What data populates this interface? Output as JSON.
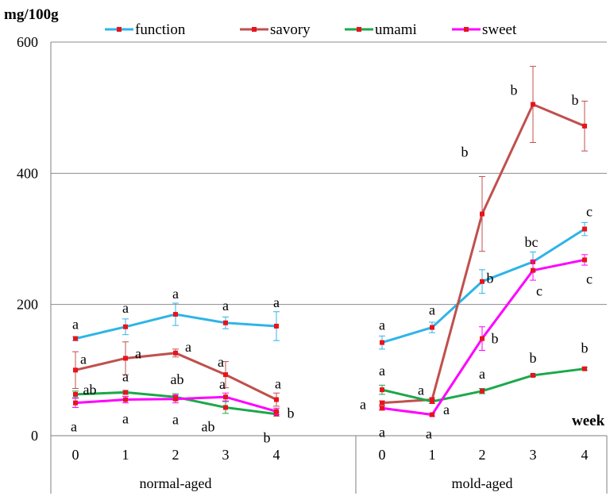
{
  "chart_data": {
    "type": "line",
    "ylabel": "mg/100g",
    "xlabel": "week",
    "ylim": [
      0,
      600
    ],
    "yticks": [
      0,
      200,
      400,
      600
    ],
    "grid": true,
    "legend_position": "top",
    "groups": [
      {
        "label": "normal-aged",
        "ticks": [
          "0",
          "1",
          "2",
          "3",
          "4"
        ]
      },
      {
        "label": "mold-aged",
        "ticks": [
          "0",
          "1",
          "2",
          "3",
          "4"
        ]
      }
    ],
    "series": [
      {
        "name": "function",
        "color": "#2EB4E8",
        "values": [
          [
            148,
            166,
            185,
            172,
            167
          ],
          [
            142,
            165,
            235,
            265,
            315
          ]
        ],
        "errors": [
          [
            3,
            12,
            17,
            9,
            22
          ],
          [
            10,
            8,
            18,
            15,
            10
          ]
        ],
        "letters": [
          [
            "a",
            "a",
            "a",
            "a",
            "a"
          ],
          [
            "a",
            "a",
            "b",
            "bc",
            "c"
          ]
        ]
      },
      {
        "name": "savory",
        "color": "#C0504D",
        "values": [
          [
            100,
            118,
            126,
            93,
            55
          ],
          [
            50,
            55,
            338,
            505,
            472
          ]
        ],
        "errors": [
          [
            28,
            25,
            6,
            20,
            10
          ],
          [
            3,
            3,
            57,
            58,
            38
          ]
        ],
        "letters": [
          [
            "a",
            "a",
            "a",
            "a",
            "a"
          ],
          [
            "a",
            "a",
            "b",
            "b",
            "b"
          ]
        ]
      },
      {
        "name": "umami",
        "color": "#1BA84A",
        "values": [
          [
            63,
            66,
            59,
            43,
            33
          ],
          [
            70,
            52,
            68,
            92,
            102
          ]
        ],
        "errors": [
          [
            5,
            3,
            5,
            9,
            3
          ],
          [
            7,
            3,
            4,
            2,
            2
          ]
        ],
        "letters": [
          [
            "ab",
            "a",
            "ab",
            "ab",
            "b"
          ],
          [
            "a",
            "a",
            "a",
            "b",
            "b"
          ]
        ]
      },
      {
        "name": "sweet",
        "color": "#FF00FF",
        "values": [
          [
            50,
            55,
            56,
            59,
            37
          ],
          [
            42,
            32,
            148,
            252,
            268
          ]
        ],
        "errors": [
          [
            7,
            5,
            6,
            6,
            5
          ],
          [
            3,
            2,
            18,
            15,
            8
          ]
        ],
        "letters": [
          [
            "a",
            "a",
            "a",
            "a",
            "b"
          ],
          [
            "a",
            "a",
            "b",
            "c",
            "c"
          ]
        ]
      }
    ]
  }
}
